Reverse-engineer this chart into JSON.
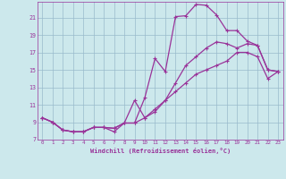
{
  "xlabel": "Windchill (Refroidissement éolien,°C)",
  "background_color": "#cce8ec",
  "line_color": "#993399",
  "grid_color": "#99bbcc",
  "xlim": [
    -0.5,
    23.5
  ],
  "ylim": [
    7,
    22.8
  ],
  "yticks": [
    7,
    9,
    11,
    13,
    15,
    17,
    19,
    21
  ],
  "xticks": [
    0,
    1,
    2,
    3,
    4,
    5,
    6,
    7,
    8,
    9,
    10,
    11,
    12,
    13,
    14,
    15,
    16,
    17,
    18,
    19,
    20,
    21,
    22,
    23
  ],
  "line1_x": [
    0,
    1,
    2,
    3,
    4,
    5,
    6,
    7,
    8,
    9,
    10,
    11,
    12,
    13,
    14,
    15,
    16,
    17,
    18,
    19,
    20,
    21,
    22,
    23
  ],
  "line1_y": [
    9.5,
    9.0,
    8.1,
    7.9,
    7.9,
    8.4,
    8.4,
    8.3,
    8.9,
    8.9,
    11.8,
    16.3,
    14.8,
    21.1,
    21.2,
    22.5,
    22.4,
    21.3,
    19.5,
    19.5,
    18.3,
    17.8,
    15.0,
    14.8
  ],
  "line2_x": [
    0,
    1,
    2,
    3,
    4,
    5,
    6,
    7,
    8,
    9,
    10,
    11,
    12,
    13,
    14,
    15,
    16,
    17,
    18,
    19,
    20,
    21,
    22,
    23
  ],
  "line2_y": [
    9.5,
    9.0,
    8.1,
    7.9,
    7.9,
    8.4,
    8.4,
    8.3,
    8.9,
    11.5,
    9.5,
    10.5,
    11.5,
    13.5,
    15.5,
    16.5,
    17.5,
    18.2,
    18.0,
    17.5,
    18.0,
    17.8,
    15.0,
    14.8
  ],
  "line3_x": [
    0,
    1,
    2,
    3,
    4,
    5,
    6,
    7,
    8,
    9,
    10,
    11,
    12,
    13,
    14,
    15,
    16,
    17,
    18,
    19,
    20,
    21,
    22,
    23
  ],
  "line3_y": [
    9.5,
    9.0,
    8.1,
    7.9,
    7.9,
    8.4,
    8.4,
    7.9,
    8.9,
    8.9,
    9.5,
    10.2,
    11.5,
    12.5,
    13.5,
    14.5,
    15.0,
    15.5,
    16.0,
    17.0,
    17.0,
    16.5,
    14.0,
    14.8
  ]
}
